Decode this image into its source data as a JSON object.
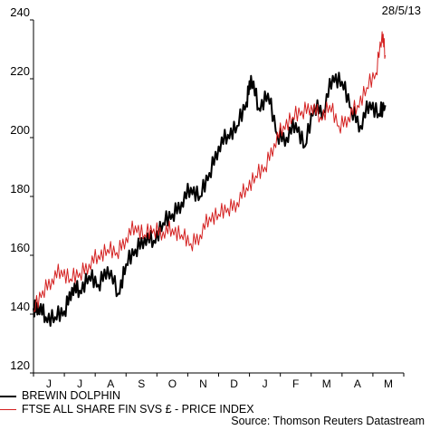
{
  "chart_data": {
    "type": "line",
    "date_label": "28/5/13",
    "source": "Source: Thomson Reuters Datastream",
    "ylim": [
      120,
      240
    ],
    "yticks": [
      120,
      140,
      160,
      180,
      200,
      220,
      240
    ],
    "months": [
      "J",
      "J",
      "A",
      "S",
      "O",
      "N",
      "D",
      "J",
      "F",
      "M",
      "A",
      "M"
    ],
    "grid": false,
    "legend_position": "bottom-left",
    "series": [
      {
        "name": "BREWIN DOLPHIN",
        "color": "#000000",
        "x": [
          0,
          0.15,
          0.4,
          0.7,
          1.0,
          1.25,
          1.5,
          1.8,
          2.1,
          2.4,
          2.75,
          3.0,
          3.3,
          3.6,
          3.9,
          4.2,
          4.5,
          4.8,
          5.1,
          5.4,
          5.7,
          6.0,
          6.3,
          6.6,
          6.9,
          7.05,
          7.3,
          7.6,
          7.9,
          8.2,
          8.5,
          8.8,
          9.1,
          9.4,
          9.7,
          10.0,
          10.3,
          10.6,
          10.9,
          11.2,
          11.4
        ],
        "values": [
          142,
          143,
          139,
          139,
          141,
          149,
          148,
          153,
          150,
          156,
          147,
          157,
          162,
          166,
          165,
          171,
          174,
          178,
          183,
          180,
          188,
          197,
          201,
          204,
          212,
          221,
          210,
          215,
          201,
          200,
          205,
          197,
          211,
          209,
          221,
          219,
          210,
          204,
          212,
          208,
          211
        ]
      },
      {
        "name": "FTSE ALL SHARE FIN SVS £ - PRICE INDEX",
        "color": "#d42020",
        "x": [
          0,
          0.3,
          0.6,
          0.9,
          1.2,
          1.5,
          1.8,
          2.1,
          2.4,
          2.7,
          3.0,
          3.3,
          3.6,
          3.9,
          4.2,
          4.5,
          4.8,
          5.1,
          5.4,
          5.7,
          6.0,
          6.3,
          6.6,
          6.9,
          7.2,
          7.5,
          7.8,
          8.1,
          8.4,
          8.7,
          9.0,
          9.3,
          9.6,
          9.9,
          10.2,
          10.5,
          10.8,
          11.1,
          11.3,
          11.4
        ],
        "values": [
          141,
          148,
          152,
          155,
          152,
          154,
          157,
          160,
          162,
          161,
          166,
          170,
          167,
          169,
          168,
          169,
          167,
          164,
          167,
          173,
          174,
          176,
          178,
          183,
          187,
          190,
          198,
          204,
          207,
          209,
          211,
          207,
          211,
          204,
          207,
          211,
          217,
          222,
          236,
          228
        ]
      }
    ]
  }
}
